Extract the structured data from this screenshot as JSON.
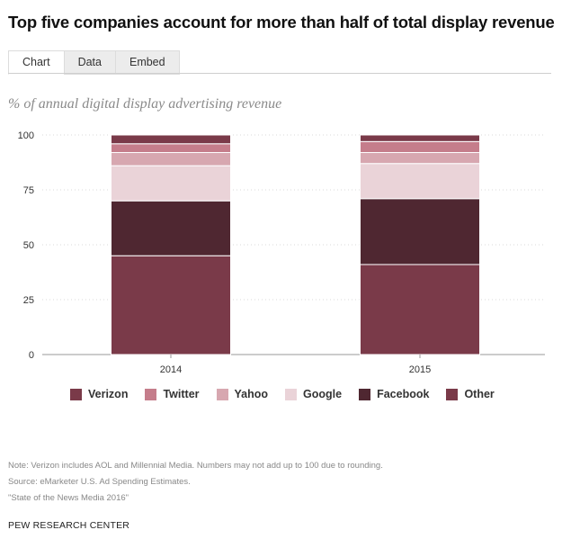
{
  "title": "Top five companies account for more than half of total display revenue",
  "tabs": [
    {
      "label": "Chart",
      "active": true
    },
    {
      "label": "Data",
      "active": false
    },
    {
      "label": "Embed",
      "active": false
    }
  ],
  "subtitle": "% of annual digital display advertising revenue",
  "chart_data": {
    "type": "bar",
    "stacked": true,
    "categories": [
      "2014",
      "2015"
    ],
    "ylim": [
      0,
      100
    ],
    "yticks": [
      "0",
      "25",
      "50",
      "75",
      "100"
    ],
    "grid": true,
    "legend_position": "bottom",
    "series": [
      {
        "name": "Other",
        "color": "#7a3a49",
        "values": [
          45,
          41
        ]
      },
      {
        "name": "Facebook",
        "color": "#4f2731",
        "values": [
          25,
          30
        ]
      },
      {
        "name": "Google",
        "color": "#ead3d8",
        "values": [
          16,
          16
        ]
      },
      {
        "name": "Yahoo",
        "color": "#d7a7b0",
        "values": [
          6,
          5
        ]
      },
      {
        "name": "Twitter",
        "color": "#c57d8b",
        "values": [
          4,
          5
        ]
      },
      {
        "name": "Verizon",
        "color": "#7a3a49",
        "values": [
          4,
          3
        ]
      }
    ],
    "legend_order": [
      "Verizon",
      "Twitter",
      "Yahoo",
      "Google",
      "Facebook",
      "Other"
    ]
  },
  "notes": [
    "Note: Verizon includes AOL and Millennial Media. Numbers may not add up to 100 due to rounding.",
    "Source: eMarketer U.S. Ad Spending Estimates.",
    "\"State of the News Media 2016\""
  ],
  "brand": "PEW RESEARCH CENTER"
}
